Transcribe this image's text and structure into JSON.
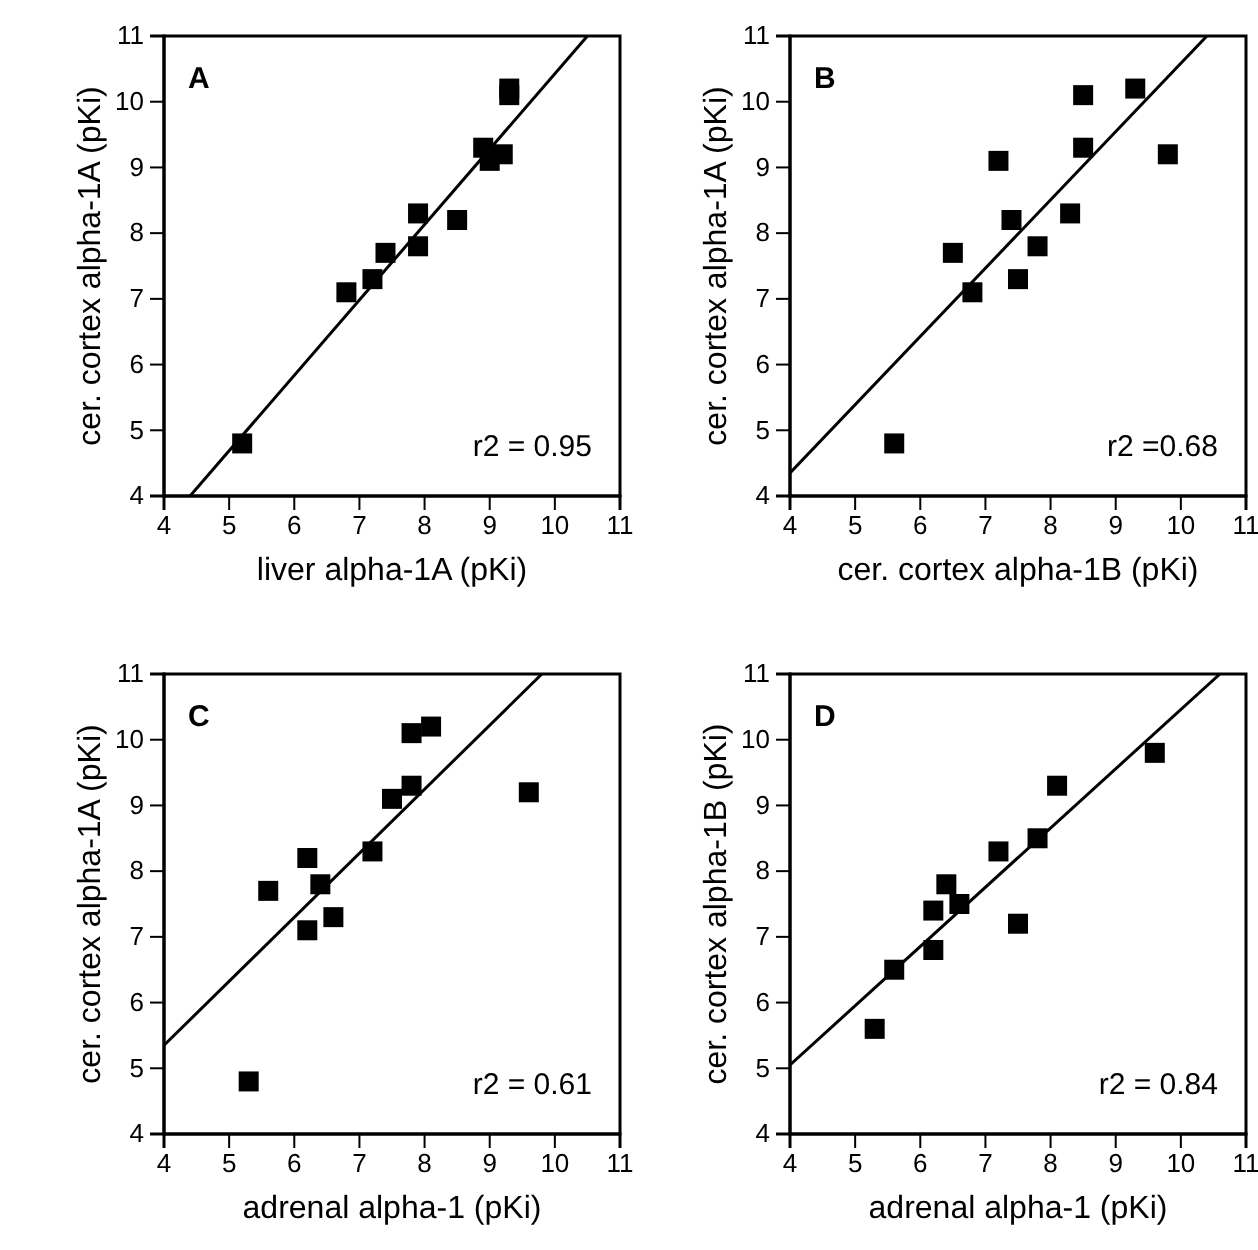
{
  "chart_data": [
    {
      "type": "scatter",
      "xlabel": "liver alpha-1A (pKi)",
      "ylabel": "cer. cortex alpha-1A (pKi)",
      "annotations": [
        "A",
        "r2 = 0.95"
      ],
      "xlim": [
        4,
        11
      ],
      "ylim": [
        4,
        11
      ],
      "xticks": [
        4,
        5,
        6,
        7,
        8,
        9,
        10,
        11
      ],
      "yticks": [
        4,
        5,
        6,
        7,
        8,
        9,
        10,
        11
      ],
      "series": [
        {
          "color": "#000000",
          "marker": "square",
          "x": [
            5.2,
            6.8,
            7.2,
            7.4,
            7.9,
            7.9,
            8.5,
            8.9,
            9.0,
            9.2,
            9.3,
            9.3
          ],
          "values": [
            4.8,
            7.1,
            7.3,
            7.7,
            7.8,
            8.3,
            8.2,
            9.3,
            9.1,
            9.2,
            10.1,
            10.2
          ]
        },
        {
          "type": "line",
          "color": "#000000",
          "marker": "none",
          "x": [
            4.4,
            10.5
          ],
          "values": [
            4,
            11
          ]
        }
      ]
    },
    {
      "type": "scatter",
      "xlabel": "cer. cortex alpha-1B (pKi)",
      "ylabel": "cer. cortex alpha-1A (pKi)",
      "annotations": [
        "B",
        "r2 =0.68"
      ],
      "xlim": [
        4,
        11
      ],
      "ylim": [
        4,
        11
      ],
      "xticks": [
        4,
        5,
        6,
        7,
        8,
        9,
        10,
        11
      ],
      "yticks": [
        4,
        5,
        6,
        7,
        8,
        9,
        10,
        11
      ],
      "series": [
        {
          "color": "#000000",
          "marker": "square",
          "x": [
            5.6,
            6.5,
            6.8,
            7.2,
            7.4,
            7.5,
            7.8,
            8.3,
            8.5,
            8.5,
            9.3,
            9.8
          ],
          "values": [
            4.8,
            7.7,
            7.1,
            9.1,
            8.2,
            7.3,
            7.8,
            8.3,
            10.1,
            9.3,
            10.2,
            9.2
          ]
        },
        {
          "type": "line",
          "color": "#000000",
          "marker": "none",
          "x": [
            4,
            10.4
          ],
          "values": [
            4.35,
            11
          ]
        }
      ]
    },
    {
      "type": "scatter",
      "xlabel": "adrenal alpha-1 (pKi)",
      "ylabel": "cer. cortex alpha-1A (pKi)",
      "annotations": [
        "C",
        "r2 = 0.61"
      ],
      "xlim": [
        4,
        11
      ],
      "ylim": [
        4,
        11
      ],
      "xticks": [
        4,
        5,
        6,
        7,
        8,
        9,
        10,
        11
      ],
      "yticks": [
        4,
        5,
        6,
        7,
        8,
        9,
        10,
        11
      ],
      "series": [
        {
          "color": "#000000",
          "marker": "square",
          "x": [
            5.3,
            5.6,
            6.2,
            6.2,
            6.4,
            6.6,
            7.2,
            7.5,
            7.8,
            7.8,
            8.1,
            9.6
          ],
          "values": [
            4.8,
            7.7,
            8.2,
            7.1,
            7.8,
            7.3,
            8.3,
            9.1,
            9.3,
            10.1,
            10.2,
            9.2
          ]
        },
        {
          "type": "line",
          "color": "#000000",
          "marker": "none",
          "x": [
            4,
            9.8
          ],
          "values": [
            5.35,
            11
          ]
        }
      ]
    },
    {
      "type": "scatter",
      "xlabel": "adrenal alpha-1 (pKi)",
      "ylabel": "cer. cortex alpha-1B (pKi)",
      "annotations": [
        "D",
        "r2 = 0.84"
      ],
      "xlim": [
        4,
        11
      ],
      "ylim": [
        4,
        11
      ],
      "xticks": [
        4,
        5,
        6,
        7,
        8,
        9,
        10,
        11
      ],
      "yticks": [
        4,
        5,
        6,
        7,
        8,
        9,
        10,
        11
      ],
      "series": [
        {
          "color": "#000000",
          "marker": "square",
          "x": [
            5.3,
            5.6,
            6.2,
            6.2,
            6.4,
            6.6,
            7.2,
            7.5,
            7.8,
            8.1,
            9.6
          ],
          "values": [
            5.6,
            6.5,
            6.8,
            7.4,
            7.8,
            7.5,
            8.3,
            7.2,
            8.5,
            9.3,
            9.8
          ]
        },
        {
          "type": "line",
          "color": "#000000",
          "marker": "none",
          "x": [
            4,
            10.6
          ],
          "values": [
            5.05,
            11
          ]
        }
      ]
    }
  ]
}
